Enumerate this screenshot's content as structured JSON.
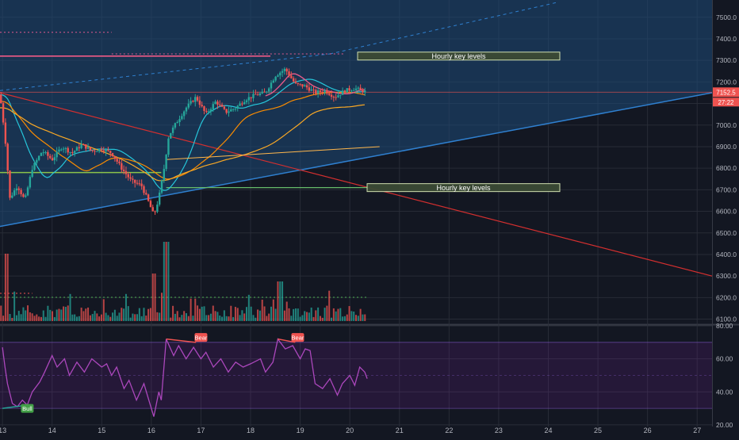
{
  "chart_data": {
    "type": "candlestick",
    "price_axis": {
      "ylim": [
        6080,
        7580
      ],
      "ticks": [
        6100,
        6200,
        6300,
        6400,
        6500,
        6600,
        6700,
        6800,
        6900,
        7000,
        7100,
        7200,
        7300,
        7400,
        7500
      ],
      "tick_labels": [
        "6100.0",
        "6200.0",
        "6300.0",
        "6400.0",
        "6500.0",
        "6600.0",
        "6700.0",
        "6800.0",
        "6900.0",
        "7000.0",
        "7100.0",
        "7200.0",
        "7300.0",
        "7400.0",
        "7500.0"
      ],
      "last_price_label": "7152.5",
      "countdown_label": "27:22"
    },
    "time_axis": {
      "xlim": [
        12.95,
        27.3
      ],
      "ticks": [
        13,
        14,
        15,
        16,
        17,
        18,
        19,
        20,
        21,
        22,
        23,
        24,
        25,
        26,
        27
      ],
      "tick_labels": [
        "13",
        "14",
        "15",
        "16",
        "17",
        "18",
        "19",
        "20",
        "21",
        "22",
        "23",
        "24",
        "25",
        "26",
        "27"
      ]
    },
    "price_path": [
      [
        12.95,
        7140
      ],
      [
        13.05,
        6950
      ],
      [
        13.15,
        6660
      ],
      [
        13.3,
        6720
      ],
      [
        13.45,
        6650
      ],
      [
        13.6,
        6800
      ],
      [
        13.8,
        6880
      ],
      [
        14.0,
        6840
      ],
      [
        14.2,
        6900
      ],
      [
        14.4,
        6870
      ],
      [
        14.6,
        6910
      ],
      [
        14.8,
        6880
      ],
      [
        15.0,
        6890
      ],
      [
        15.2,
        6870
      ],
      [
        15.4,
        6800
      ],
      [
        15.6,
        6740
      ],
      [
        15.8,
        6720
      ],
      [
        15.95,
        6640
      ],
      [
        16.05,
        6580
      ],
      [
        16.15,
        6660
      ],
      [
        16.25,
        6790
      ],
      [
        16.35,
        6950
      ],
      [
        16.5,
        7010
      ],
      [
        16.7,
        7080
      ],
      [
        16.9,
        7130
      ],
      [
        17.1,
        7050
      ],
      [
        17.3,
        7110
      ],
      [
        17.5,
        7060
      ],
      [
        17.7,
        7080
      ],
      [
        17.9,
        7120
      ],
      [
        18.1,
        7140
      ],
      [
        18.3,
        7150
      ],
      [
        18.5,
        7230
      ],
      [
        18.7,
        7260
      ],
      [
        18.9,
        7190
      ],
      [
        19.1,
        7180
      ],
      [
        19.3,
        7150
      ],
      [
        19.5,
        7160
      ],
      [
        19.7,
        7130
      ],
      [
        19.9,
        7160
      ],
      [
        20.1,
        7170
      ],
      [
        20.35,
        7152.5
      ]
    ],
    "key_levels": [
      {
        "label": "Hourly key levels",
        "price": 7320
      },
      {
        "label": "Hourly key levels",
        "price": 6710
      }
    ],
    "annotations": [
      {
        "label": "Bear",
        "x": 17.0,
        "oscillator": 73
      },
      {
        "label": "Bear",
        "x": 18.95,
        "oscillator": 73
      },
      {
        "label": "Bull",
        "x": 13.5,
        "oscillator": 30
      }
    ],
    "oscillator": {
      "ylim": [
        19,
        80
      ],
      "ticks": [
        20,
        40,
        60,
        80
      ],
      "tick_labels": [
        "20.00",
        "40.00",
        "60.00",
        "80.00"
      ],
      "values": [
        [
          13.0,
          67
        ],
        [
          13.05,
          55
        ],
        [
          13.1,
          45
        ],
        [
          13.2,
          33
        ],
        [
          13.3,
          31
        ],
        [
          13.4,
          35
        ],
        [
          13.5,
          32
        ],
        [
          13.6,
          40
        ],
        [
          13.75,
          46
        ],
        [
          13.85,
          52
        ],
        [
          14.0,
          62
        ],
        [
          14.1,
          55
        ],
        [
          14.25,
          60
        ],
        [
          14.35,
          50
        ],
        [
          14.5,
          58
        ],
        [
          14.65,
          52
        ],
        [
          14.8,
          60
        ],
        [
          15.0,
          55
        ],
        [
          15.1,
          57
        ],
        [
          15.2,
          50
        ],
        [
          15.3,
          55
        ],
        [
          15.45,
          42
        ],
        [
          15.55,
          47
        ],
        [
          15.7,
          35
        ],
        [
          15.85,
          45
        ],
        [
          15.95,
          35
        ],
        [
          16.05,
          25
        ],
        [
          16.15,
          40
        ],
        [
          16.2,
          35
        ],
        [
          16.3,
          72
        ],
        [
          16.45,
          62
        ],
        [
          16.55,
          68
        ],
        [
          16.7,
          60
        ],
        [
          16.85,
          67
        ],
        [
          17.0,
          60
        ],
        [
          17.1,
          64
        ],
        [
          17.25,
          55
        ],
        [
          17.4,
          60
        ],
        [
          17.55,
          52
        ],
        [
          17.7,
          58
        ],
        [
          17.85,
          55
        ],
        [
          18.0,
          57
        ],
        [
          18.2,
          60
        ],
        [
          18.3,
          52
        ],
        [
          18.45,
          58
        ],
        [
          18.55,
          72
        ],
        [
          18.7,
          66
        ],
        [
          18.85,
          68
        ],
        [
          19.0,
          60
        ],
        [
          19.1,
          66
        ],
        [
          19.2,
          65
        ],
        [
          19.3,
          45
        ],
        [
          19.45,
          42
        ],
        [
          19.6,
          48
        ],
        [
          19.75,
          38
        ],
        [
          19.85,
          45
        ],
        [
          20.0,
          50
        ],
        [
          20.1,
          44
        ],
        [
          20.2,
          55
        ],
        [
          20.3,
          52
        ],
        [
          20.35,
          48
        ]
      ]
    }
  }
}
